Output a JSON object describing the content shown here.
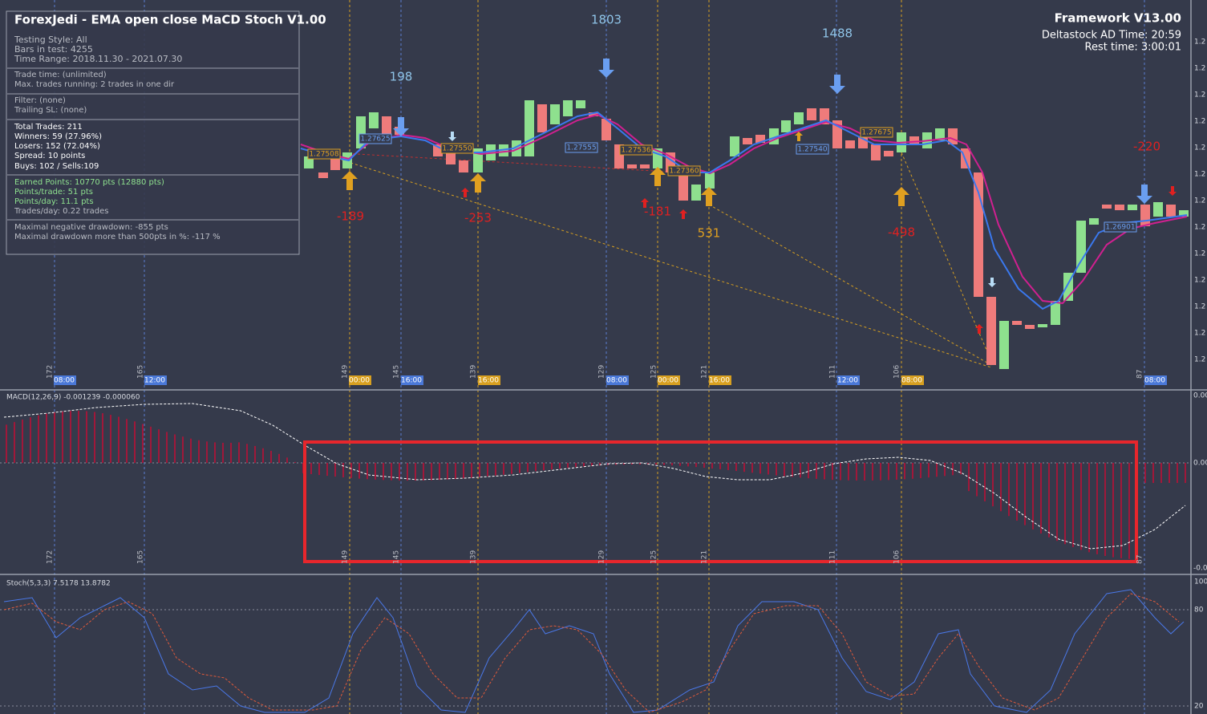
{
  "header": {
    "title": "ForexJedi - EMA open close MaCD Stoch V1.00"
  },
  "info": {
    "sections": [
      [
        "Testing Style:  All",
        "Bars in test: 4255",
        "Time Range: 2018.11.30 - 2021.07.30"
      ],
      [
        "Trade time: (unlimited)",
        "Max. trades running: 2 trades in one dir"
      ],
      [
        "Filter: (none)",
        "Trailing SL: (none)"
      ],
      [
        "Total Trades: 211",
        "Winners: 59  (27.96%)",
        "Losers: 152  (72.04%)",
        "Spread: 10 points",
        "Buys: 102 / Sells:109"
      ],
      [
        "Earned Points: 10770 pts (12880 pts)",
        "Points/trade: 51 pts",
        "Points/day: 11.1 pts",
        "Trades/day: 0.22 trades"
      ],
      [
        "Maximal negative drawdown: -855 pts",
        "Maximal drawdown more than 500pts in %: -117 %"
      ]
    ]
  },
  "framework": {
    "title": "Framework V13.00",
    "time": "Deltastock AD Time: 20:59",
    "rest": "Rest time: 3:00:01"
  },
  "trades": [
    "1803",
    "198",
    "1488",
    "-189",
    "-253",
    "-181",
    "531",
    "-498",
    "-220"
  ],
  "price_tags": [
    "1.27508",
    "1.27625",
    "1.27550",
    "1.27555",
    "1.27536",
    "1.27360",
    "1.27540",
    "1.27675",
    "1.26901"
  ],
  "time_tags": [
    "08:00",
    "12:00",
    "00:00",
    "16:00",
    "16:00",
    "08:00",
    "00:00",
    "16:00",
    "12:00",
    "08:00",
    "08:00"
  ],
  "bar_counts": [
    "172",
    "165",
    "149",
    "145",
    "139",
    "129",
    "125",
    "121",
    "111",
    "106",
    "87"
  ],
  "price_axis": [
    "1.2",
    "1.2",
    "1.2",
    "1.2",
    "1.2",
    "1.2",
    "1.2",
    "1.2",
    "1.2",
    "1.2",
    "1.2",
    "1.2",
    "1.2"
  ],
  "macd": {
    "label": "MACD(12,26,9) -0.001239 -0.000060",
    "axis": [
      "0.00",
      "0.00",
      "-0.00"
    ]
  },
  "stoch": {
    "label": "Stoch(5,3,3) 7.5178 13.8782",
    "axis": [
      "100",
      "80",
      "20"
    ]
  }
}
